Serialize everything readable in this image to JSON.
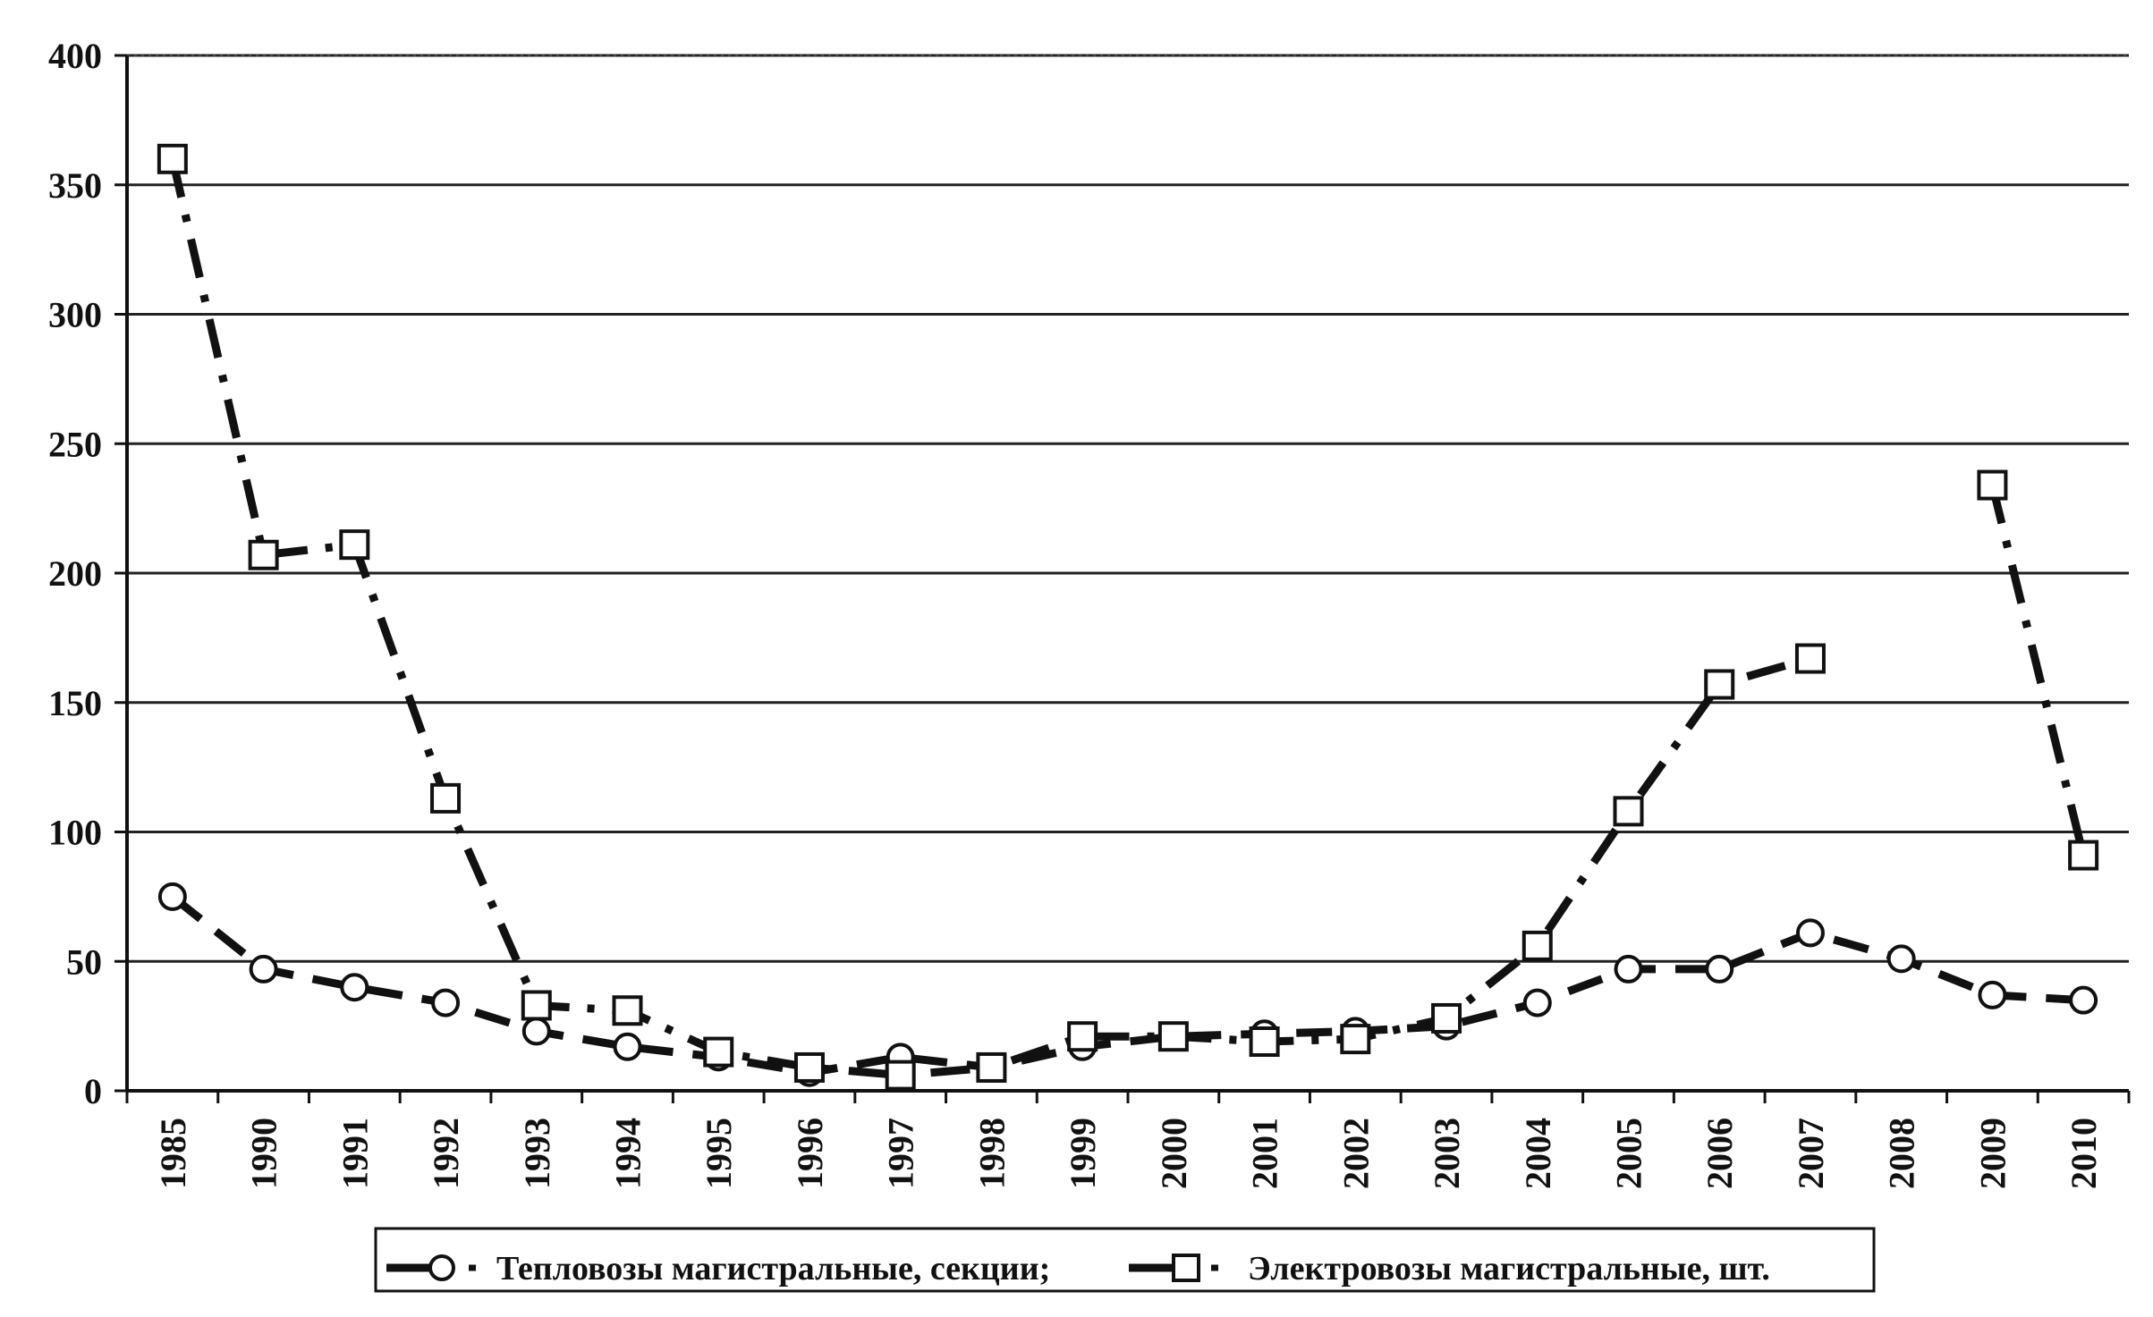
{
  "chart_data": {
    "type": "line",
    "categories": [
      "1985",
      "1990",
      "1991",
      "1992",
      "1993",
      "1994",
      "1995",
      "1996",
      "1997",
      "1998",
      "1999",
      "2000",
      "2001",
      "2002",
      "2003",
      "2004",
      "2005",
      "2006",
      "2007",
      "2008",
      "2009",
      "2010"
    ],
    "ylim": [
      0,
      400
    ],
    "yticks": [
      0,
      50,
      100,
      150,
      200,
      250,
      300,
      350,
      400
    ],
    "grid": true,
    "legend_position": "bottom",
    "series": [
      {
        "name": "Тепловозы магистральные, секции;",
        "marker": "circle",
        "line_style": "dash",
        "color": "#111111",
        "values": [
          75,
          47,
          40,
          34,
          23,
          17,
          13,
          7,
          13,
          9,
          17,
          21,
          22,
          23,
          25,
          34,
          47,
          47,
          61,
          51,
          37,
          35
        ]
      },
      {
        "name": "Электровозы магистральные, шт.",
        "marker": "square",
        "line_style": "dash-dot",
        "color": "#111111",
        "values": [
          360,
          207,
          211,
          113,
          33,
          31,
          15,
          9,
          6,
          9,
          21,
          21,
          19,
          20,
          28,
          56,
          108,
          157,
          167,
          null,
          234,
          91
        ]
      }
    ]
  }
}
